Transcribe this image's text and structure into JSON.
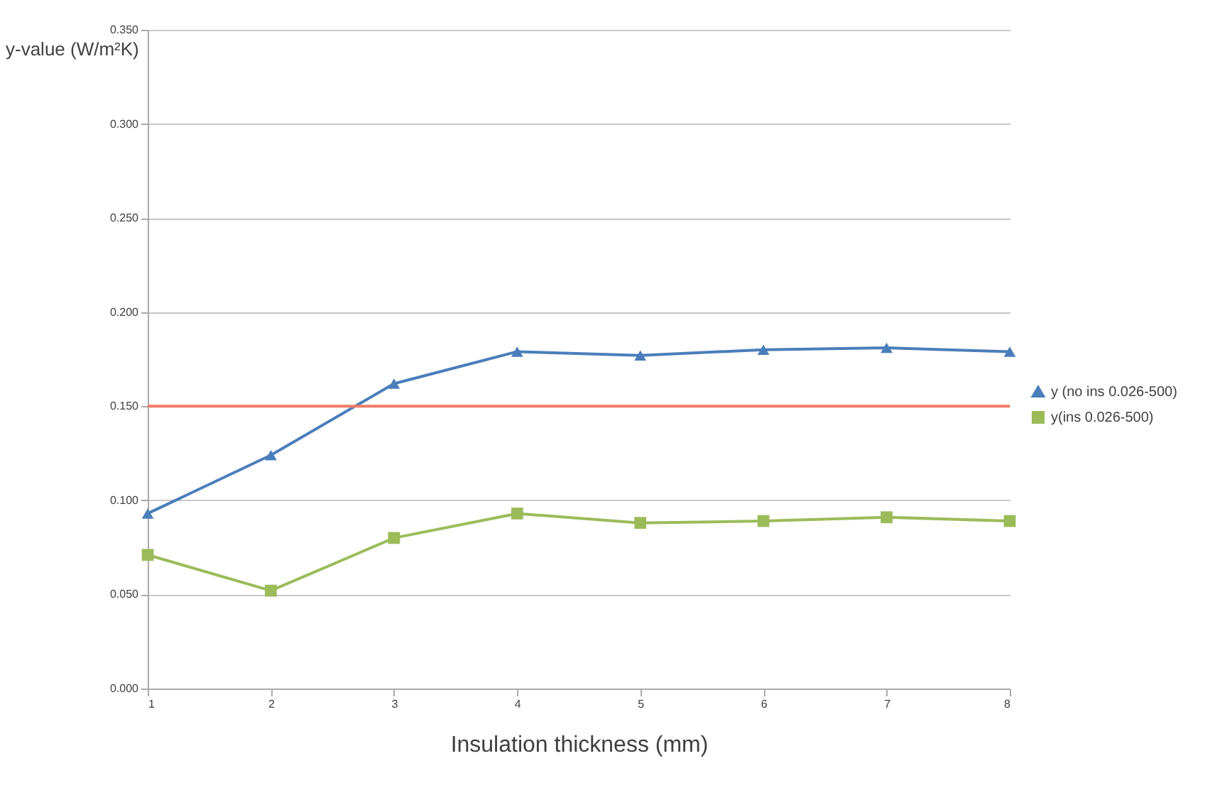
{
  "chart_data": {
    "type": "line",
    "xlabel": "Insulation thickness (mm)",
    "ylabel": "y-value (W/m²K)",
    "x": [
      1,
      2,
      3,
      4,
      5,
      6,
      7,
      8
    ],
    "series": [
      {
        "name": "y (no ins 0.026-500)",
        "color": "#4a7ebb",
        "marker": "triangle",
        "values": [
          0.093,
          0.124,
          0.162,
          0.179,
          0.177,
          0.18,
          0.181,
          0.179
        ]
      },
      {
        "name": "y(ins 0.026-500)",
        "color": "#9bbb59",
        "marker": "square",
        "values": [
          0.071,
          0.052,
          0.08,
          0.093,
          0.088,
          0.089,
          0.091,
          0.089
        ]
      }
    ],
    "xlim": [
      1,
      8
    ],
    "xticks": [
      1,
      2,
      3,
      4,
      5,
      6,
      7,
      8
    ],
    "ylim": [
      0,
      0.35
    ],
    "yticks": [
      {
        "value": 0,
        "label": "0.000"
      },
      {
        "value": 0.05,
        "label": "0.050"
      },
      {
        "value": 0.1,
        "label": "0.100"
      },
      {
        "value": 0.15,
        "label": "0.150"
      },
      {
        "value": 0.2,
        "label": "0.200"
      },
      {
        "value": 0.25,
        "label": "0.250"
      },
      {
        "value": 0.3,
        "label": "0.300"
      },
      {
        "value": 0.35,
        "label": "0.350"
      }
    ],
    "ref_lines": [
      {
        "axis": "y",
        "value": 0.15,
        "color": "#f07c64"
      }
    ],
    "grid": "y",
    "legend": "right"
  }
}
